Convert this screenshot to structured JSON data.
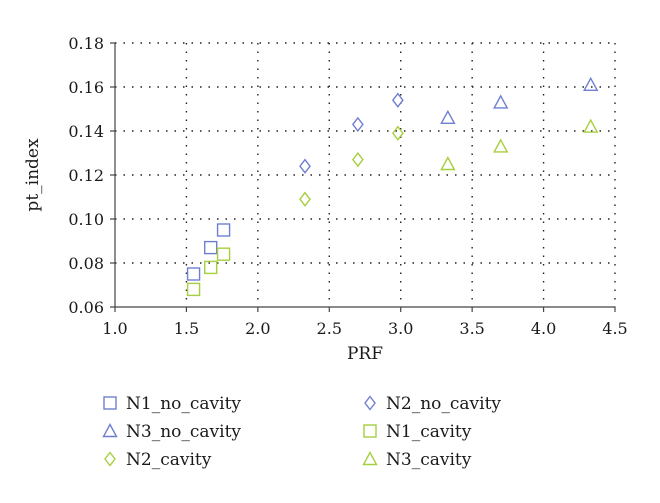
{
  "chart_data": {
    "type": "scatter",
    "xlabel": "PRF",
    "ylabel": "pt_index",
    "xlim": [
      1.0,
      4.5
    ],
    "ylim": [
      0.06,
      0.18
    ],
    "xticks": [
      "1.0",
      "1.5",
      "2.0",
      "2.5",
      "3.0",
      "3.5",
      "4.0",
      "4.5"
    ],
    "yticks": [
      "0.06",
      "0.08",
      "0.10",
      "0.12",
      "0.14",
      "0.16",
      "0.18"
    ],
    "grid": true,
    "legend_position": "bottom",
    "series": [
      {
        "name": "N1_no_cavity",
        "marker": "square",
        "color": "#6f7fd0",
        "x": [
          1.55,
          1.67,
          1.76
        ],
        "y": [
          0.075,
          0.087,
          0.095
        ]
      },
      {
        "name": "N2_no_cavity",
        "marker": "diamond",
        "color": "#6f7fd0",
        "x": [
          2.33,
          2.7,
          2.98
        ],
        "y": [
          0.124,
          0.143,
          0.154
        ]
      },
      {
        "name": "N3_no_cavity",
        "marker": "triangle",
        "color": "#6f7fd0",
        "x": [
          3.33,
          3.7,
          4.33
        ],
        "y": [
          0.146,
          0.153,
          0.161
        ]
      },
      {
        "name": "N1_cavity",
        "marker": "square",
        "color": "#a6cf3e",
        "x": [
          1.55,
          1.67,
          1.76
        ],
        "y": [
          0.068,
          0.078,
          0.084
        ]
      },
      {
        "name": "N2_cavity",
        "marker": "diamond",
        "color": "#a6cf3e",
        "x": [
          2.33,
          2.7,
          2.98
        ],
        "y": [
          0.109,
          0.127,
          0.139
        ]
      },
      {
        "name": "N3_cavity",
        "marker": "triangle",
        "color": "#a6cf3e",
        "x": [
          3.33,
          3.7,
          4.33
        ],
        "y": [
          0.125,
          0.133,
          0.142
        ]
      }
    ]
  }
}
